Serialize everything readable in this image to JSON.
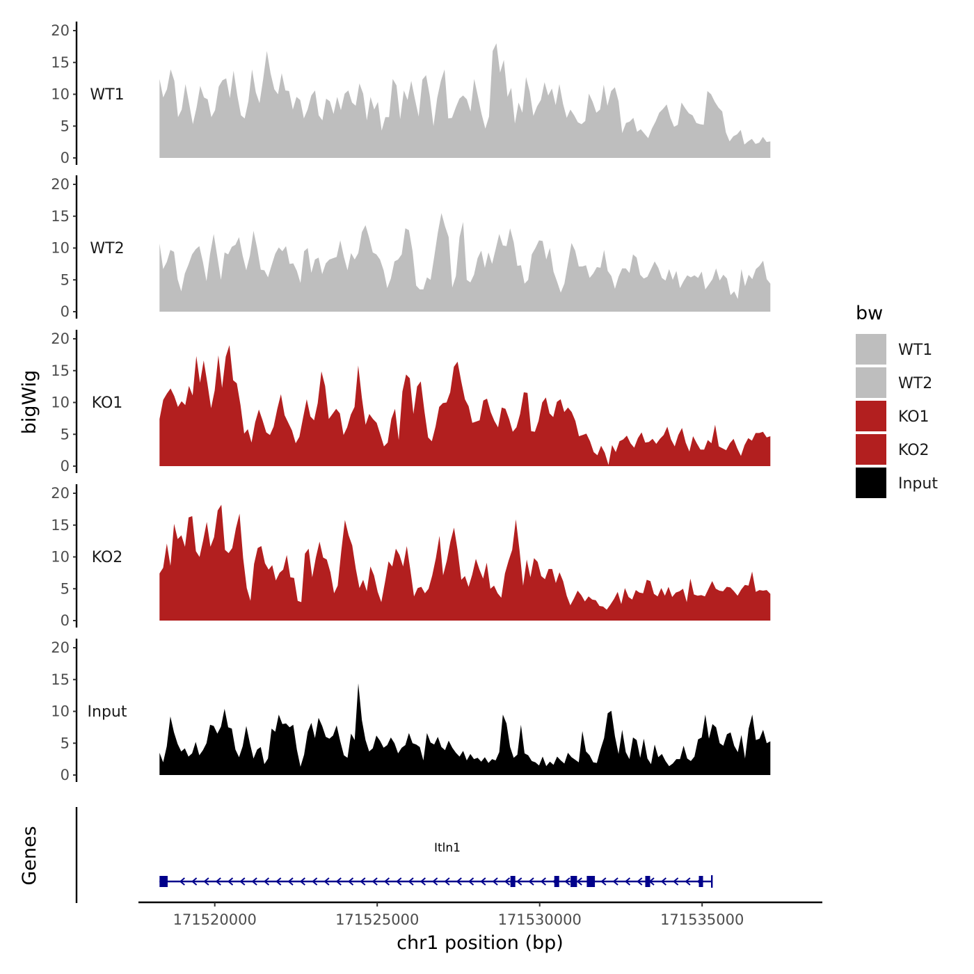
{
  "chart_data": {
    "type": "area",
    "chromosome": "chr1",
    "xlabel": "chr1 position (bp)",
    "ylabel": "bigWig",
    "gene_track_label": "Genes",
    "xlim": [
      171515800,
      171537000
    ],
    "x_ticks": [
      171520000,
      171525000,
      171530000,
      171535000
    ],
    "x_tick_labels": [
      "171520000",
      "171525000",
      "171530000",
      "171535000"
    ],
    "ylim": [
      0,
      20
    ],
    "y_ticks": [
      0,
      5,
      10,
      15,
      20
    ],
    "y_tick_labels": [
      "0",
      "5",
      "10",
      "15",
      "20"
    ],
    "series_x_range": [
      171518300,
      171537100
    ],
    "legend": {
      "title": "bw",
      "position": "right",
      "entries": [
        {
          "label": "WT1",
          "color": "#bebebe"
        },
        {
          "label": "WT2",
          "color": "#bebebe"
        },
        {
          "label": "KO1",
          "color": "#b21f1f"
        },
        {
          "label": "KO2",
          "color": "#b21f1f"
        },
        {
          "label": "Input",
          "color": "#000000"
        }
      ]
    },
    "series": [
      {
        "name": "WT1",
        "color": "#bebebe",
        "values": [
          12.4,
          9.5,
          10.8,
          13.9,
          12.1,
          6.4,
          7.6,
          11.6,
          8.5,
          5.3,
          7.9,
          11.3,
          9.5,
          9.2,
          6.4,
          7.5,
          11.2,
          12.2,
          12.5,
          9.4,
          13.7,
          9.8,
          6.7,
          6.2,
          8.9,
          13.9,
          10.3,
          8.6,
          12.4,
          16.8,
          13.3,
          10.8,
          10.0,
          13.3,
          10.6,
          10.5,
          7.6,
          9.6,
          9.1,
          6.2,
          7.6,
          9.8,
          10.6,
          6.7,
          5.9,
          9.3,
          8.9,
          6.9,
          9.6,
          7.5,
          10.1,
          10.6,
          8.7,
          8.2,
          11.7,
          10.1,
          5.9,
          9.6,
          7.6,
          8.8,
          4.3,
          6.4,
          6.4,
          12.4,
          11.4,
          6.1,
          10.6,
          9.1,
          12.1,
          9.2,
          6.5,
          12.3,
          13.0,
          9.8,
          5.0,
          9.4,
          12.1,
          13.9,
          6.2,
          6.3,
          7.9,
          9.3,
          9.8,
          9.2,
          7.3,
          12.4,
          9.7,
          6.9,
          4.6,
          6.5,
          16.8,
          18.0,
          13.4,
          15.4,
          9.6,
          11.0,
          5.4,
          8.7,
          7.1,
          12.7,
          10.4,
          6.6,
          8.1,
          9.1,
          11.9,
          9.8,
          10.9,
          8.3,
          11.6,
          8.5,
          6.3,
          7.6,
          6.7,
          5.6,
          5.3,
          5.8,
          10.1,
          8.8,
          7.1,
          7.6,
          11.5,
          8.2,
          10.5,
          11.1,
          8.9,
          3.9,
          5.5,
          5.7,
          6.3,
          4.1,
          4.5,
          3.8,
          3.1,
          4.6,
          5.7,
          7.1,
          7.7,
          8.4,
          6.3,
          4.9,
          5.2,
          8.7,
          7.8,
          7.0,
          6.7,
          5.5,
          5.3,
          5.2,
          10.5,
          10.0,
          8.8,
          7.9,
          7.3,
          4.0,
          2.6,
          3.4,
          3.7,
          4.4,
          2.1,
          2.6,
          3.0,
          2.2,
          2.4,
          3.3,
          2.5,
          2.6
        ]
      },
      {
        "name": "WT2",
        "color": "#bebebe",
        "values": [
          10.7,
          6.7,
          7.8,
          9.7,
          9.4,
          5.1,
          3.2,
          6.0,
          7.4,
          9.0,
          9.8,
          10.3,
          7.8,
          4.8,
          9.1,
          12.2,
          8.6,
          5.0,
          9.3,
          9.0,
          10.2,
          10.5,
          11.7,
          8.8,
          6.5,
          8.8,
          12.7,
          10.0,
          6.6,
          6.5,
          5.4,
          7.3,
          9.1,
          10.1,
          9.5,
          10.3,
          7.5,
          7.6,
          6.4,
          4.5,
          9.5,
          10.0,
          6.1,
          8.2,
          8.5,
          5.9,
          7.6,
          8.2,
          8.4,
          8.6,
          11.2,
          8.6,
          6.5,
          9.2,
          8.2,
          9.2,
          12.5,
          13.6,
          11.6,
          9.3,
          9.0,
          8.2,
          6.5,
          3.7,
          5.2,
          7.9,
          8.2,
          9.0,
          13.1,
          12.8,
          9.5,
          4.1,
          3.5,
          3.5,
          5.4,
          5.0,
          8.6,
          12.4,
          15.5,
          13.4,
          11.7,
          3.8,
          5.6,
          11.7,
          14.1,
          5.0,
          4.6,
          5.8,
          8.4,
          9.6,
          6.9,
          9.3,
          7.5,
          9.8,
          12.2,
          10.4,
          10.3,
          13.1,
          10.9,
          7.2,
          7.3,
          4.4,
          5.0,
          9.0,
          10.0,
          11.2,
          11.1,
          8.2,
          10.0,
          6.3,
          4.7,
          3.0,
          4.4,
          7.6,
          10.8,
          9.6,
          7.1,
          7.1,
          7.3,
          5.3,
          6.0,
          7.0,
          6.9,
          9.7,
          6.4,
          5.6,
          3.6,
          5.5,
          6.8,
          6.8,
          6.1,
          9.0,
          8.5,
          5.8,
          5.2,
          5.5,
          6.7,
          7.9,
          6.9,
          5.3,
          4.9,
          6.7,
          5.0,
          6.4,
          3.7,
          4.8,
          5.7,
          5.4,
          5.7,
          5.3,
          6.3,
          3.5,
          4.3,
          5.1,
          6.8,
          4.9,
          5.8,
          5.2,
          2.6,
          3.2,
          2.0,
          6.7,
          4.0,
          5.8,
          5.1,
          6.7,
          7.2,
          8.0,
          5.1,
          4.4
        ]
      },
      {
        "name": "KO1",
        "color": "#b21f1f",
        "values": [
          7.4,
          10.4,
          11.4,
          12.2,
          11.0,
          9.3,
          10.2,
          9.6,
          12.6,
          11.1,
          17.3,
          13.1,
          16.6,
          13.0,
          9.1,
          11.9,
          17.4,
          12.3,
          17.2,
          19.0,
          13.5,
          13.0,
          9.6,
          5.1,
          5.8,
          3.7,
          6.9,
          8.9,
          7.2,
          5.3,
          4.9,
          6.2,
          9.0,
          11.3,
          8.0,
          6.8,
          5.6,
          3.6,
          4.6,
          7.6,
          10.5,
          7.8,
          7.2,
          9.9,
          14.9,
          12.6,
          7.4,
          8.2,
          9.0,
          8.3,
          4.9,
          6.1,
          8.1,
          9.3,
          15.8,
          10.7,
          6.5,
          8.2,
          7.4,
          6.8,
          5.0,
          3.1,
          3.7,
          7.4,
          9.0,
          4.1,
          11.7,
          14.4,
          13.8,
          8.2,
          12.5,
          13.3,
          8.6,
          4.5,
          3.9,
          6.2,
          9.3,
          9.9,
          10.0,
          11.6,
          15.6,
          16.4,
          13.3,
          10.5,
          9.4,
          6.8,
          7.0,
          7.2,
          10.3,
          10.6,
          8.5,
          7.1,
          6.1,
          9.2,
          9.0,
          7.4,
          5.4,
          6.1,
          8.2,
          11.6,
          11.5,
          5.5,
          5.4,
          7.1,
          10.0,
          10.8,
          8.3,
          7.7,
          10.1,
          10.5,
          8.5,
          9.2,
          8.5,
          7.1,
          4.7,
          4.9,
          5.1,
          3.9,
          2.2,
          1.7,
          3.2,
          2.1,
          0.2,
          3.3,
          2.2,
          3.9,
          4.2,
          4.8,
          3.6,
          2.9,
          4.4,
          5.3,
          3.7,
          3.8,
          4.3,
          3.5,
          4.3,
          4.9,
          6.2,
          4.2,
          3.1,
          4.9,
          6.0,
          3.7,
          2.3,
          4.7,
          3.6,
          2.6,
          2.6,
          4.1,
          3.6,
          6.5,
          3.1,
          2.8,
          2.5,
          3.6,
          4.3,
          2.8,
          1.6,
          3.3,
          4.4,
          4.0,
          5.2,
          5.2,
          5.4,
          4.5,
          4.7
        ]
      },
      {
        "name": "KO2",
        "color": "#b21f1f",
        "values": [
          7.4,
          8.3,
          12.1,
          8.6,
          15.2,
          12.8,
          13.4,
          11.6,
          16.2,
          16.4,
          10.9,
          10.0,
          12.6,
          15.5,
          11.6,
          13.1,
          17.3,
          18.2,
          11.1,
          10.6,
          11.4,
          14.5,
          16.8,
          9.8,
          5.1,
          3.1,
          8.9,
          11.4,
          11.7,
          9.0,
          8.0,
          8.7,
          6.3,
          7.5,
          8.0,
          10.3,
          6.8,
          6.7,
          3.1,
          2.9,
          10.5,
          11.3,
          6.8,
          9.9,
          12.4,
          9.9,
          9.6,
          7.6,
          4.3,
          5.5,
          11.0,
          15.8,
          13.4,
          11.8,
          8.1,
          5.1,
          6.4,
          4.6,
          8.5,
          7.1,
          4.5,
          2.9,
          6.0,
          9.3,
          8.5,
          11.3,
          10.3,
          8.5,
          11.7,
          7.9,
          3.8,
          5.1,
          5.3,
          4.3,
          5.0,
          7.1,
          9.8,
          13.3,
          7.1,
          9.4,
          12.4,
          14.6,
          11.0,
          6.4,
          7.0,
          5.3,
          7.2,
          9.7,
          8.0,
          6.6,
          9.1,
          5.0,
          5.5,
          4.3,
          3.6,
          7.4,
          9.4,
          11.1,
          15.9,
          11.1,
          5.5,
          9.6,
          6.8,
          9.8,
          9.2,
          7.0,
          6.5,
          8.1,
          8.1,
          5.9,
          7.6,
          6.2,
          3.9,
          2.4,
          3.5,
          4.7,
          4.0,
          3.0,
          3.8,
          3.3,
          3.2,
          2.3,
          2.2,
          1.7,
          2.5,
          3.4,
          4.5,
          2.6,
          5.1,
          3.7,
          3.3,
          4.8,
          4.4,
          4.3,
          6.4,
          6.2,
          4.2,
          3.8,
          5.1,
          3.9,
          5.3,
          3.7,
          4.4,
          4.6,
          5.0,
          2.9,
          6.6,
          4.1,
          3.9,
          4.0,
          3.8,
          5.0,
          6.2,
          5.0,
          4.7,
          4.6,
          5.3,
          5.2,
          4.6,
          3.9,
          4.9,
          5.6,
          5.5,
          7.7,
          4.5,
          4.8,
          4.7,
          4.8,
          4.2
        ]
      },
      {
        "name": "Input",
        "color": "#000000",
        "values": [
          3.5,
          2.0,
          4.5,
          9.2,
          6.7,
          4.9,
          3.7,
          4.2,
          2.9,
          3.4,
          5.2,
          3.1,
          3.9,
          5.0,
          7.9,
          7.7,
          6.5,
          7.6,
          10.4,
          7.5,
          7.3,
          4.0,
          2.8,
          4.5,
          7.7,
          5.0,
          2.6,
          4.0,
          4.4,
          1.7,
          2.6,
          7.3,
          6.8,
          9.5,
          8.0,
          8.1,
          7.5,
          7.9,
          4.0,
          1.3,
          3.2,
          6.8,
          8.2,
          5.8,
          9.0,
          7.7,
          6.0,
          5.7,
          6.2,
          7.8,
          5.3,
          3.1,
          2.7,
          6.5,
          5.5,
          14.4,
          8.6,
          5.5,
          3.7,
          4.2,
          6.2,
          5.4,
          4.3,
          4.7,
          5.9,
          5.0,
          3.4,
          4.3,
          4.7,
          6.6,
          5.0,
          4.8,
          4.4,
          2.3,
          6.6,
          5.1,
          4.8,
          6.0,
          4.4,
          3.9,
          5.4,
          4.3,
          3.5,
          2.9,
          3.8,
          2.3,
          3.3,
          2.5,
          2.7,
          2.1,
          2.8,
          1.9,
          2.5,
          2.3,
          3.6,
          9.5,
          8.1,
          4.4,
          2.7,
          3.2,
          7.9,
          3.4,
          3.1,
          2.2,
          2.0,
          1.5,
          2.9,
          1.4,
          2.1,
          1.6,
          2.9,
          2.3,
          1.8,
          3.5,
          2.8,
          2.4,
          2.0,
          6.9,
          3.7,
          3.1,
          2.0,
          1.9,
          4.0,
          5.8,
          9.7,
          10.1,
          6.1,
          3.3,
          7.1,
          3.6,
          2.5,
          5.9,
          5.5,
          2.7,
          5.7,
          2.6,
          1.7,
          4.8,
          2.8,
          3.3,
          2.2,
          1.4,
          1.8,
          2.5,
          2.5,
          4.6,
          2.6,
          2.2,
          2.9,
          5.6,
          5.9,
          9.5,
          5.7,
          8.0,
          7.5,
          5.0,
          4.6,
          6.4,
          6.7,
          4.6,
          3.6,
          6.3,
          2.6,
          7.3,
          9.5,
          5.5,
          5.7,
          7.1,
          5.0,
          5.3
        ]
      }
    ],
    "gene": {
      "name": "Itln1",
      "strand": "-",
      "start": 171518300,
      "end": 171535300,
      "color": "#00008b",
      "exons": [
        [
          171518300,
          171518550
        ],
        [
          171529100,
          171529250
        ],
        [
          171530450,
          171530600
        ],
        [
          171530950,
          171531150
        ],
        [
          171531450,
          171531700
        ],
        [
          171533250,
          171533400
        ],
        [
          171534900,
          171535000
        ]
      ]
    }
  }
}
